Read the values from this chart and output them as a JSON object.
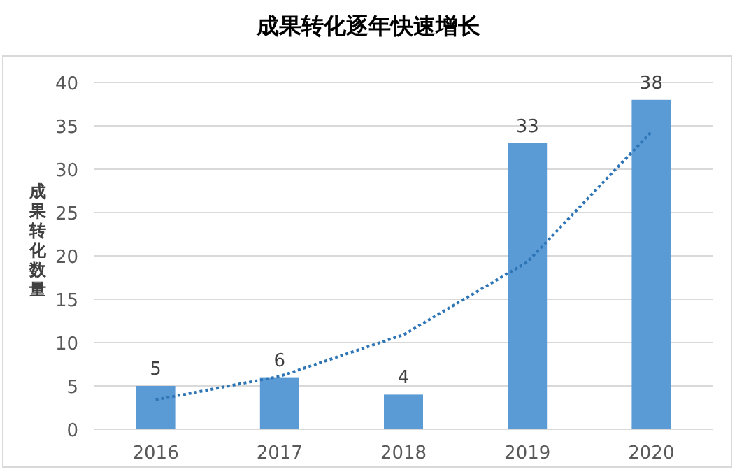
{
  "chart_data": {
    "type": "bar",
    "title": "成果转化逐年快速增长",
    "ylabel": "成果转化数量",
    "categories": [
      "2016",
      "2017",
      "2018",
      "2019",
      "2020"
    ],
    "ylim": [
      0,
      40
    ],
    "yticks": [
      0,
      5,
      10,
      15,
      20,
      25,
      30,
      35,
      40
    ],
    "grid": "y",
    "series": [
      {
        "color": "#5b9bd5",
        "data_labels": true,
        "values": [
          5,
          6,
          4,
          33,
          38
        ]
      },
      {
        "type": "line",
        "color": "#2e75b6",
        "line_style": "dotted",
        "values": [
          3.4,
          6.1,
          10.9,
          19.3,
          34.3
        ]
      }
    ]
  }
}
